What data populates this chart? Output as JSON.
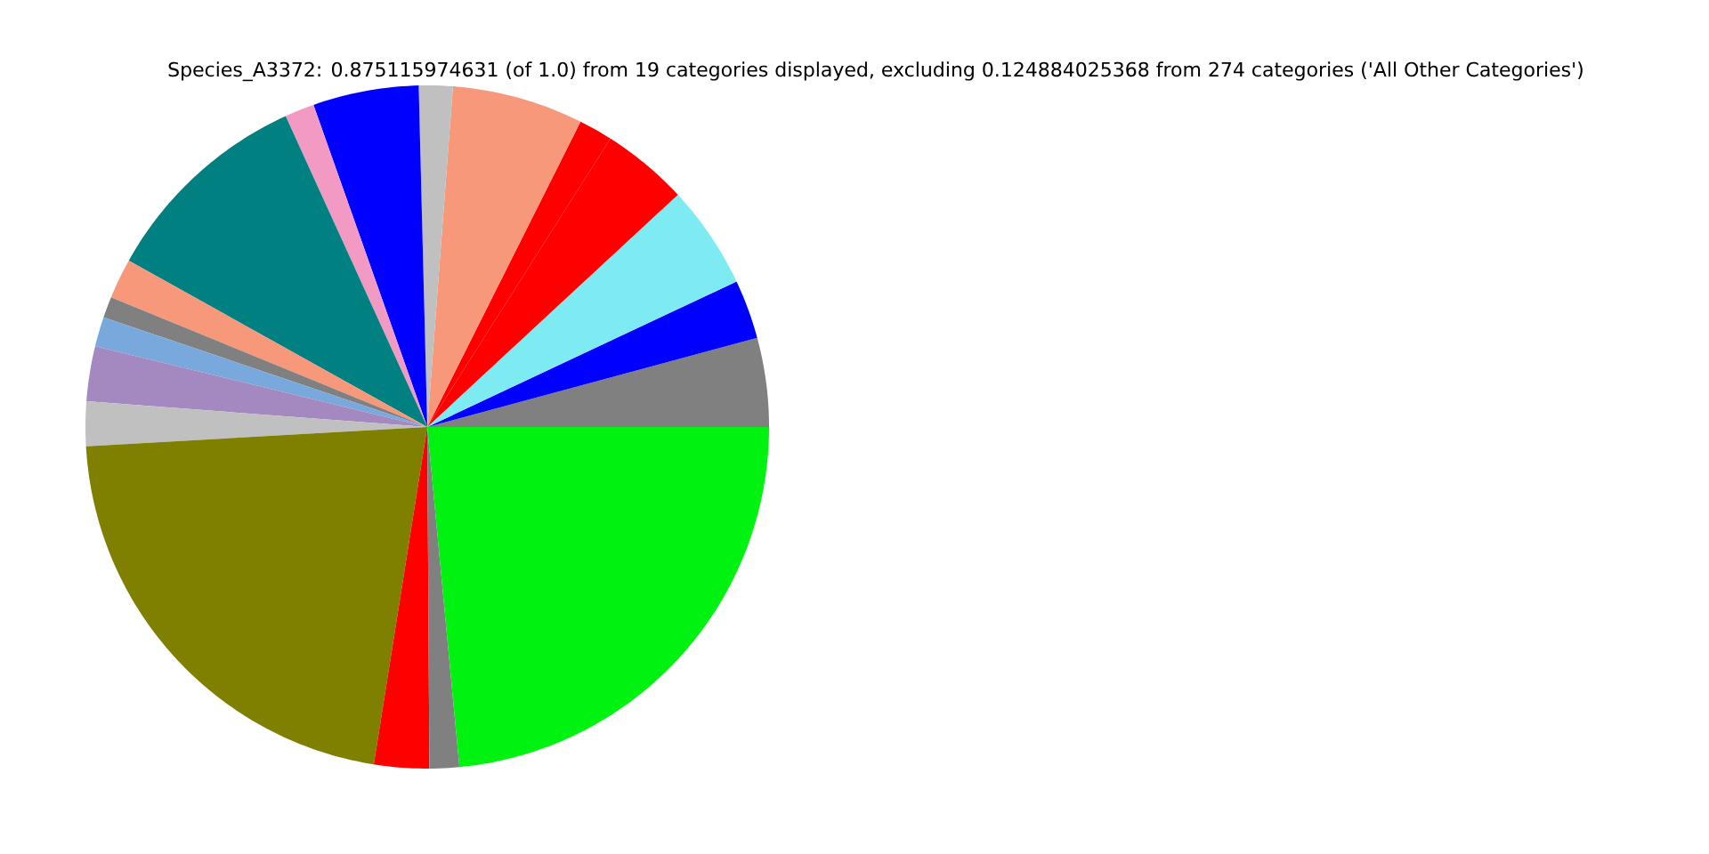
{
  "chart_data": {
    "type": "pie",
    "title": "Species_A3372: 0.875115974631 (of 1.0) from 19 categories displayed, excluding 0.124884025368 from 274 categories ('All Other Categories')",
    "categories": [
      null,
      null,
      null,
      null,
      null,
      null,
      null,
      null,
      null,
      null,
      null,
      null,
      null,
      null,
      null,
      null,
      null,
      null,
      null
    ],
    "values": [
      4.2,
      2.8,
      4.9,
      4.1,
      1.6,
      6.2,
      1.6,
      5.0,
      1.4,
      10.1,
      1.9,
      1.0,
      1.4,
      2.6,
      2.1,
      21.6,
      2.6,
      1.4,
      23.5
    ],
    "colors": [
      "#808080",
      "#0000ff",
      "#7eebf3",
      "#ff0000",
      "#ff0000",
      "#f7987a",
      "#c0c0c0",
      "#0000ff",
      "#f29ac4",
      "#008080",
      "#f7987a",
      "#808080",
      "#78a8dc",
      "#a488c0",
      "#c0c0c0",
      "#808000",
      "#ff0000",
      "#808080",
      "#00f310"
    ]
  }
}
